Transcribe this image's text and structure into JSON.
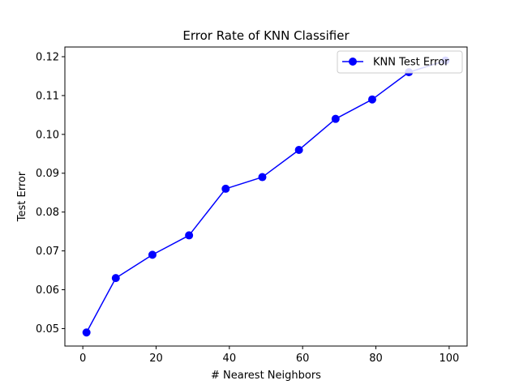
{
  "chart_data": {
    "type": "line",
    "title": "Error Rate of KNN Classifier",
    "xlabel": "# Nearest Neighbors",
    "ylabel": "Test Error",
    "xlim": [
      -4.9,
      104.9
    ],
    "ylim": [
      0.0455,
      0.1225
    ],
    "xticks": [
      0,
      20,
      40,
      60,
      80,
      100
    ],
    "yticks": [
      0.05,
      0.06,
      0.07,
      0.08,
      0.09,
      0.1,
      0.11,
      0.12
    ],
    "ytick_format": "%.2f",
    "grid": false,
    "legend": {
      "position": "top-right"
    },
    "series": [
      {
        "name": "KNN Test Error",
        "color": "#0000ff",
        "marker": "circle",
        "x": [
          1,
          9,
          19,
          29,
          39,
          49,
          59,
          69,
          79,
          89,
          99
        ],
        "y": [
          0.049,
          0.063,
          0.069,
          0.074,
          0.086,
          0.089,
          0.096,
          0.104,
          0.109,
          0.116,
          0.119
        ]
      }
    ]
  }
}
